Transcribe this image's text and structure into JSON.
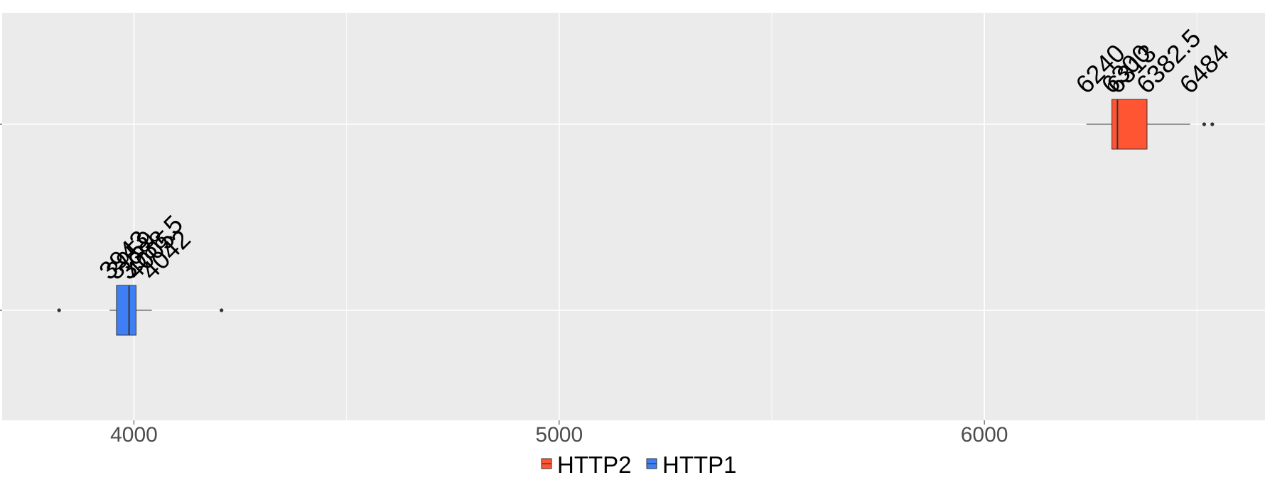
{
  "chart_data": {
    "type": "boxplot",
    "orientation": "horizontal",
    "title": "",
    "xlabel": "",
    "ylabel": "",
    "xlim": [
      3690,
      6660
    ],
    "x_ticks": [
      4000,
      5000,
      6000
    ],
    "x_tick_labels": [
      "4000",
      "5000",
      "6000"
    ],
    "grid": true,
    "legend_position": "bottom",
    "series": [
      {
        "name": "HTTP1",
        "color": "#3f7ff5",
        "min": 3943,
        "q1": 3959,
        "median": 3988.5,
        "q3": 4005,
        "max": 4042,
        "outliers": [
          3824,
          4206
        ],
        "labels": [
          "3943",
          "3959",
          "3988.5",
          "4005",
          "4042"
        ]
      },
      {
        "name": "HTTP2",
        "color": "#ff5533",
        "min": 6240,
        "q1": 6300,
        "median": 6313,
        "q3": 6382.5,
        "max": 6484,
        "outliers": [
          6517,
          6536
        ],
        "labels": [
          "6240",
          "6300",
          "6313",
          "6382.5",
          "6484"
        ]
      }
    ],
    "legend": [
      "HTTP2",
      "HTTP1"
    ]
  }
}
